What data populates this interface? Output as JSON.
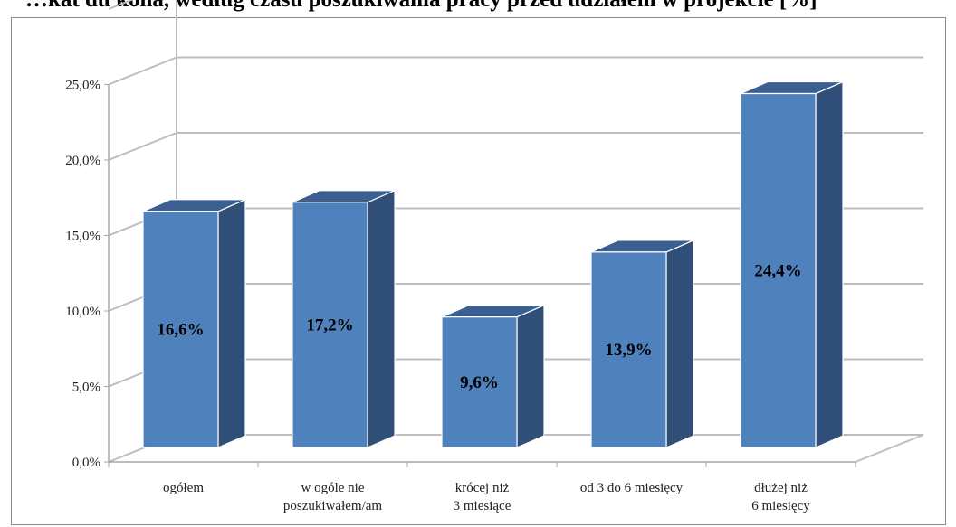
{
  "title": "…kat du kona, według czasu poszukiwania pracy przed udziałem w projekcie [%]",
  "chart_data": {
    "type": "bar",
    "categories": [
      [
        "ogółem"
      ],
      [
        "w ogóle nie",
        "poszukiwałem/am"
      ],
      [
        "krócej niż",
        "3 miesiące"
      ],
      [
        "od 3 do 6 miesięcy"
      ],
      [
        "dłużej niż",
        "6 miesięcy"
      ]
    ],
    "values": [
      16.6,
      17.2,
      9.6,
      13.9,
      24.4
    ],
    "value_labels": [
      "16,6%",
      "17,2%",
      "9,6%",
      "13,9%",
      "24,4%"
    ],
    "y_ticks": [
      "0,0%",
      "5,0%",
      "10,0%",
      "15,0%",
      "20,0%",
      "25,0%"
    ],
    "ylim": [
      0,
      25
    ],
    "grid": true,
    "style": "3d",
    "colors": {
      "front": "#4f81bd",
      "side": "#2f4f78",
      "top": "#3a5f90",
      "grid": "#bdbdbd"
    }
  }
}
